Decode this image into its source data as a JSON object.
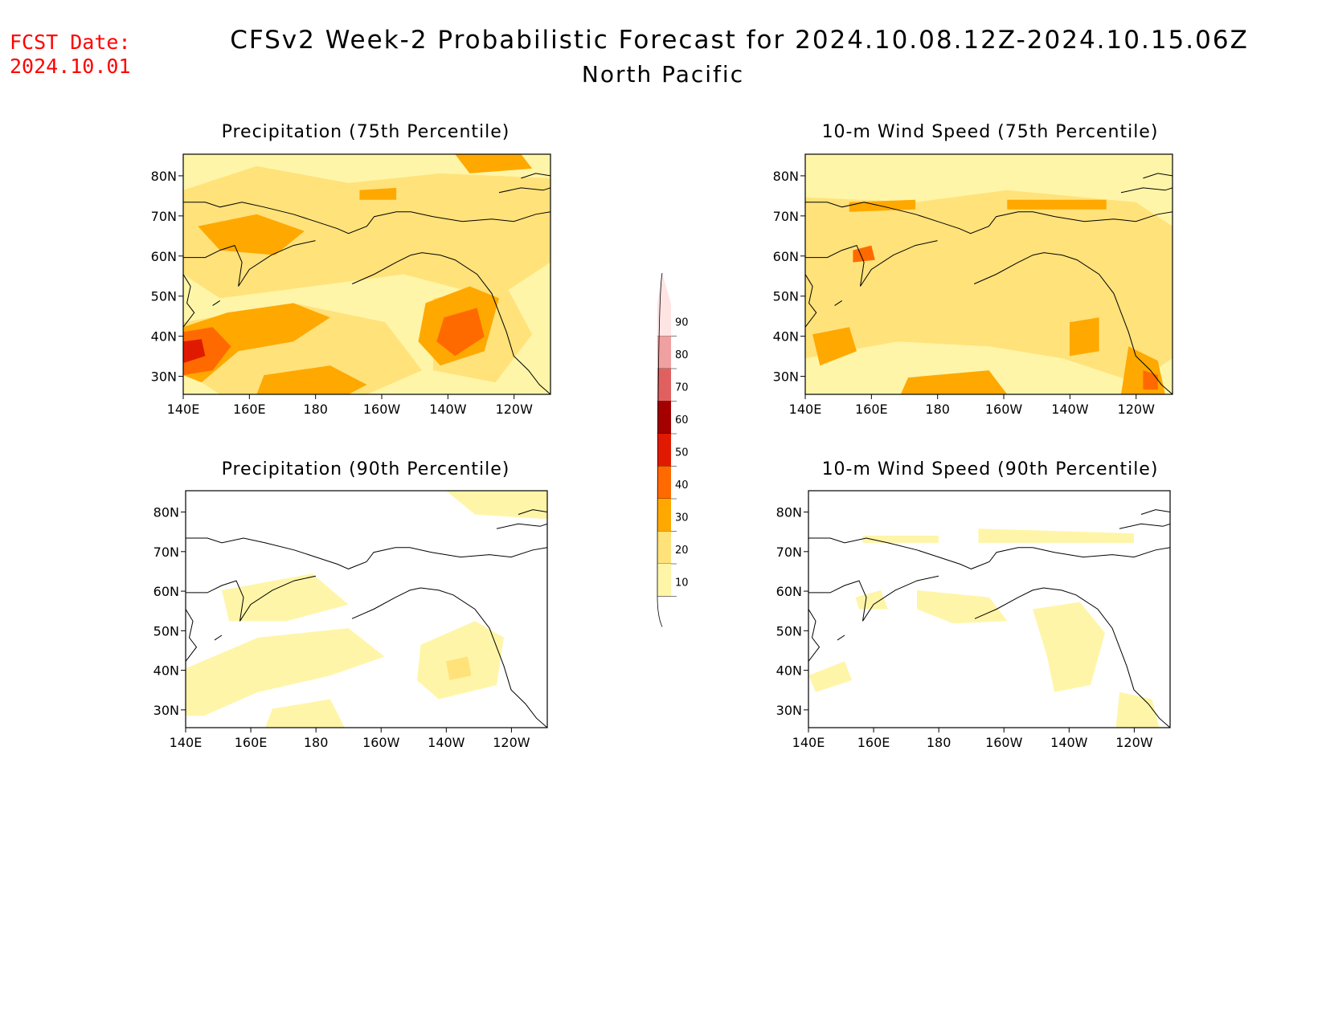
{
  "header": {
    "fcst_label": "FCST Date:",
    "fcst_date": "2024.10.01",
    "title": "CFSv2 Week-2 Probabilistic Forecast for 2024.10.08.12Z-2024.10.15.06Z",
    "subtitle": "North Pacific"
  },
  "colors": {
    "c10": "#fff5a8",
    "c20": "#ffe27a",
    "c30": "#ffa800",
    "c40": "#ff6a00",
    "c50": "#e01a00",
    "c60": "#a50000",
    "c70": "#e06060",
    "c80": "#f0a0a0",
    "c90": "#ffe4e4"
  },
  "chart_data": [
    {
      "type": "map",
      "title": "Precipitation (75th Percentile)",
      "x_ticks": [
        "140E",
        "160E",
        "180",
        "160W",
        "140W",
        "120W"
      ],
      "y_ticks": [
        "80N",
        "70N",
        "60N",
        "50N",
        "40N",
        "30N"
      ]
    },
    {
      "type": "map",
      "title": "10-m Wind Speed (75th Percentile)",
      "x_ticks": [
        "140E",
        "160E",
        "180",
        "160W",
        "140W",
        "120W"
      ],
      "y_ticks": [
        "80N",
        "70N",
        "60N",
        "50N",
        "40N",
        "30N"
      ]
    },
    {
      "type": "map",
      "title": "Precipitation (90th Percentile)",
      "x_ticks": [
        "140E",
        "160E",
        "180",
        "160W",
        "140W",
        "120W"
      ],
      "y_ticks": [
        "80N",
        "70N",
        "60N",
        "50N",
        "40N",
        "30N"
      ]
    },
    {
      "type": "map",
      "title": "10-m Wind Speed (90th Percentile)",
      "x_ticks": [
        "140E",
        "160E",
        "180",
        "160W",
        "140W",
        "120W"
      ],
      "y_ticks": [
        "80N",
        "70N",
        "60N",
        "50N",
        "40N",
        "30N"
      ]
    }
  ],
  "colorbar": {
    "levels": [
      "10",
      "20",
      "30",
      "40",
      "50",
      "60",
      "70",
      "80",
      "90"
    ]
  }
}
